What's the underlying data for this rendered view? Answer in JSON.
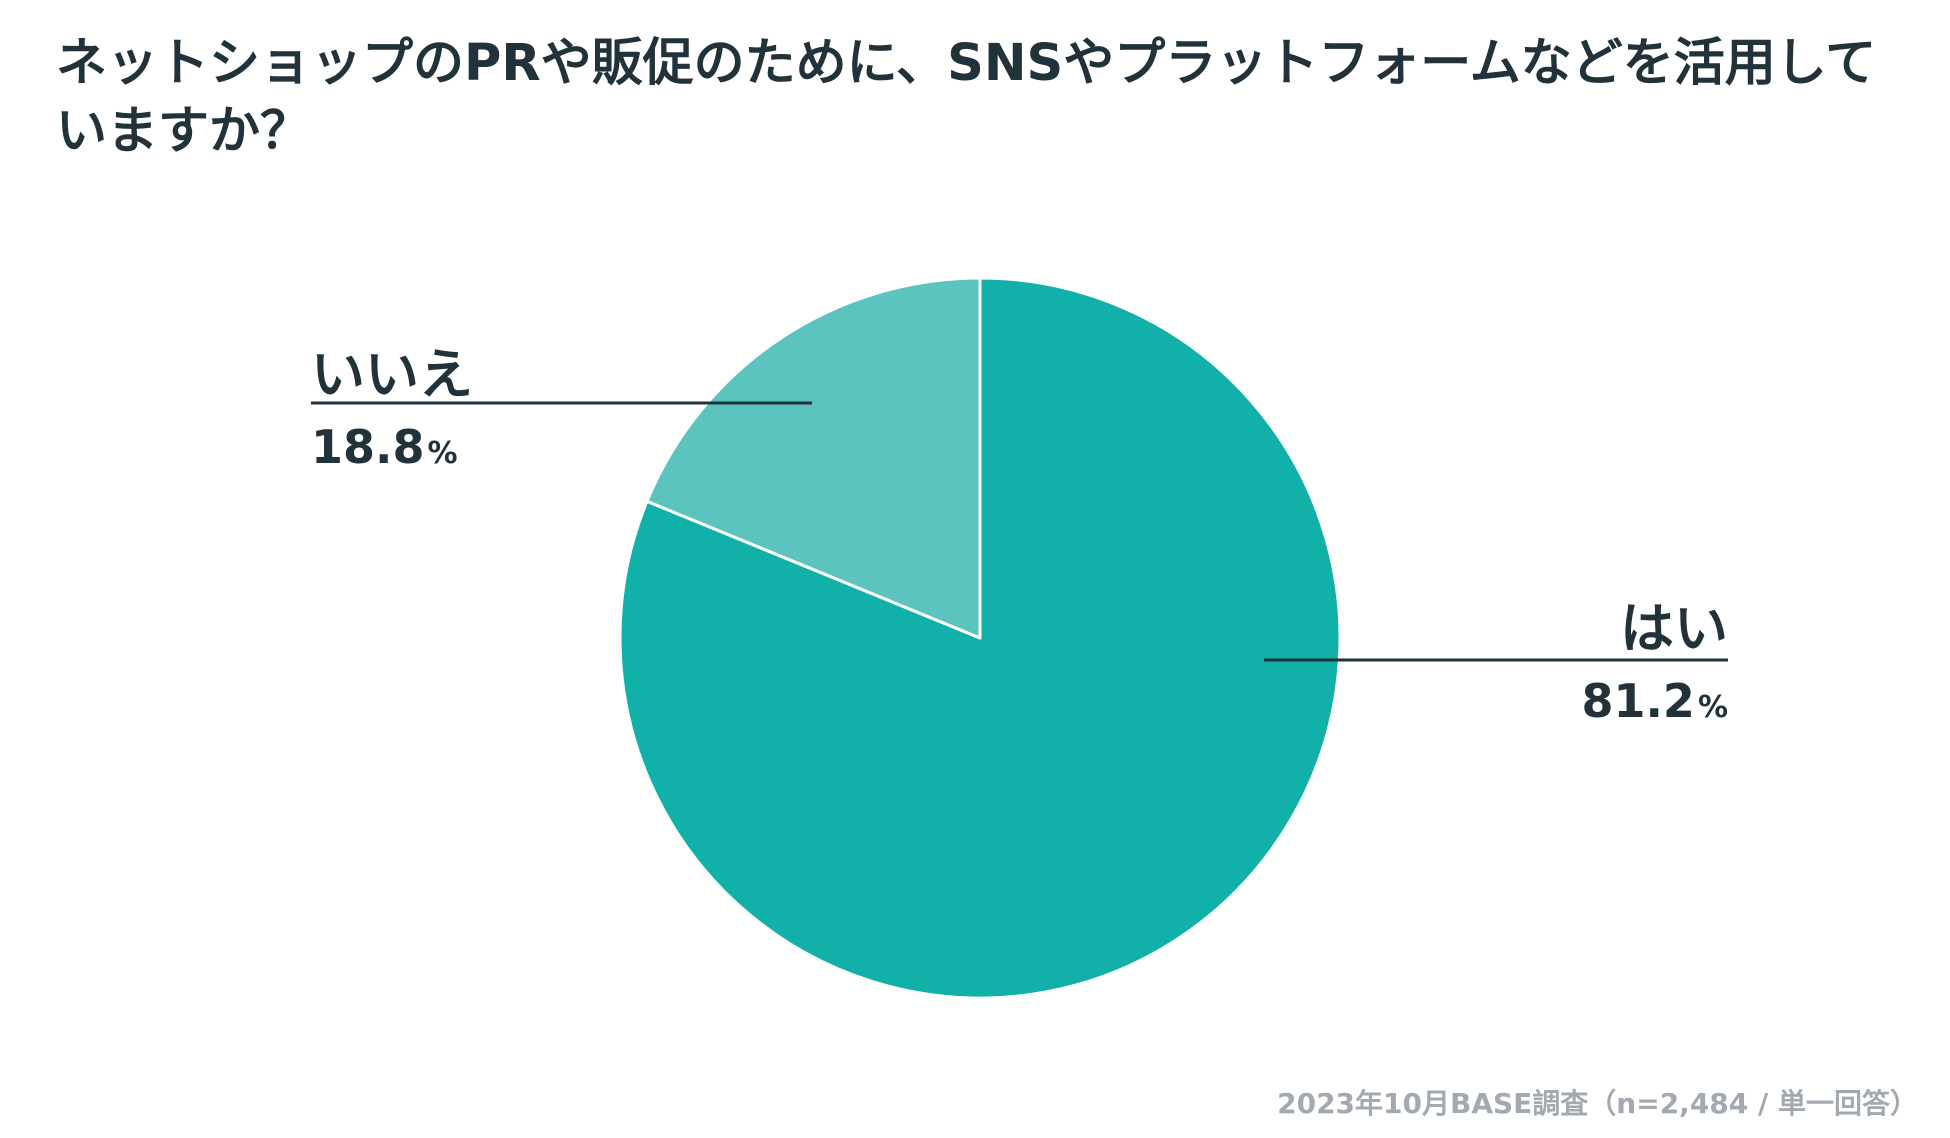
{
  "chart_data": {
    "type": "pie",
    "title": "ネットショップのPRや販促のために、SNSやプラットフォームなどを活用していますか？",
    "slices": [
      {
        "label": "はい",
        "value": 81.2,
        "display": "81.2",
        "unit": "%",
        "color": "#11b0a9"
      },
      {
        "label": "いいえ",
        "value": 18.8,
        "display": "18.8",
        "unit": "%",
        "color": "#5cc4be"
      }
    ],
    "start_angle": "12 o'clock",
    "direction": "clockwise",
    "slice_border_color": "#ffffff",
    "leader_line_color": "#21323a"
  },
  "footnote": "2023年10月BASE調査（n=2,484 / 単一回答）"
}
